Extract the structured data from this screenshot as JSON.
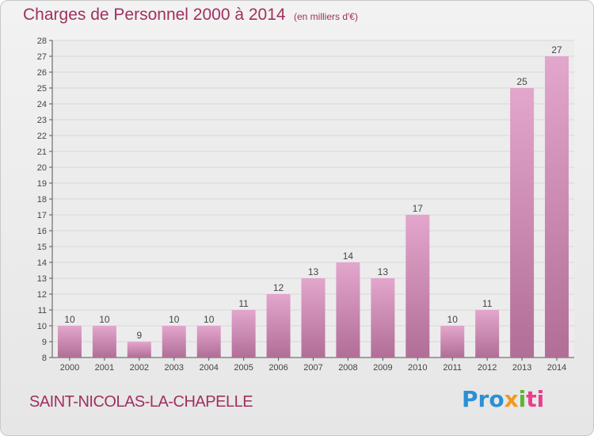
{
  "header": {
    "title": "Charges de Personnel 2000 à 2014",
    "subtitle": "(en milliers d'€)"
  },
  "footer": {
    "commune": "SAINT-NICOLAS-LA-CHAPELLE",
    "logo": {
      "part1": "Pro",
      "part2": "x",
      "part3": "i",
      "part4": "ti"
    }
  },
  "colors": {
    "title": "#a0305e",
    "bar_top": "#e3a6cc",
    "bar_bottom": "#b16e97",
    "grid": "#d9d9d9"
  },
  "chart_data": {
    "type": "bar",
    "categories": [
      "2000",
      "2001",
      "2002",
      "2003",
      "2004",
      "2005",
      "2006",
      "2007",
      "2008",
      "2009",
      "2010",
      "2011",
      "2012",
      "2013",
      "2014"
    ],
    "values": [
      10,
      10,
      9,
      10,
      10,
      11,
      12,
      13,
      14,
      13,
      17,
      10,
      11,
      25,
      27
    ],
    "ylim": [
      8,
      28
    ],
    "yticks": [
      8,
      9,
      10,
      11,
      12,
      13,
      14,
      15,
      16,
      17,
      18,
      19,
      20,
      21,
      22,
      23,
      24,
      25,
      26,
      27,
      28
    ],
    "grid": true
  }
}
